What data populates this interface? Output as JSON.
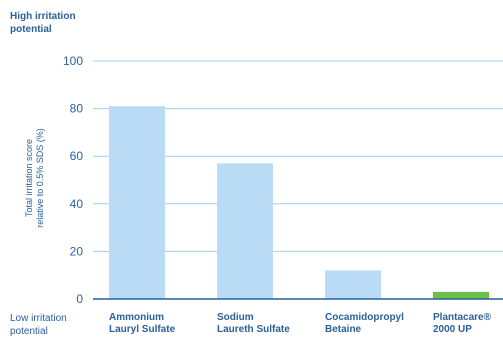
{
  "chart_data": {
    "type": "bar",
    "title": "",
    "ylabel": [
      "Total irritation score",
      "relative to 0.5% SDS (%)"
    ],
    "y_top_label": [
      "High irritation",
      "potential"
    ],
    "y_bottom_label": [
      "Low irritation",
      "potential"
    ],
    "ylim": [
      0,
      100
    ],
    "yticks": [
      "0",
      "20",
      "40",
      "60",
      "80",
      "100"
    ],
    "grid": true,
    "categories": [
      [
        "Ammonium",
        "Lauryl Sulfate"
      ],
      [
        "Sodium",
        "Laureth Sulfate"
      ],
      [
        "Cocamidopropyl",
        "Betaine"
      ],
      [
        "Plantacare®",
        "2000 UP"
      ]
    ],
    "values": [
      81,
      57,
      12,
      3
    ],
    "colors": [
      "#b9dbf5",
      "#b9dbf5",
      "#b9dbf5",
      "#6cc04a"
    ],
    "axis_color": "#2b5f9e",
    "grid_color": "#a8cdea"
  }
}
